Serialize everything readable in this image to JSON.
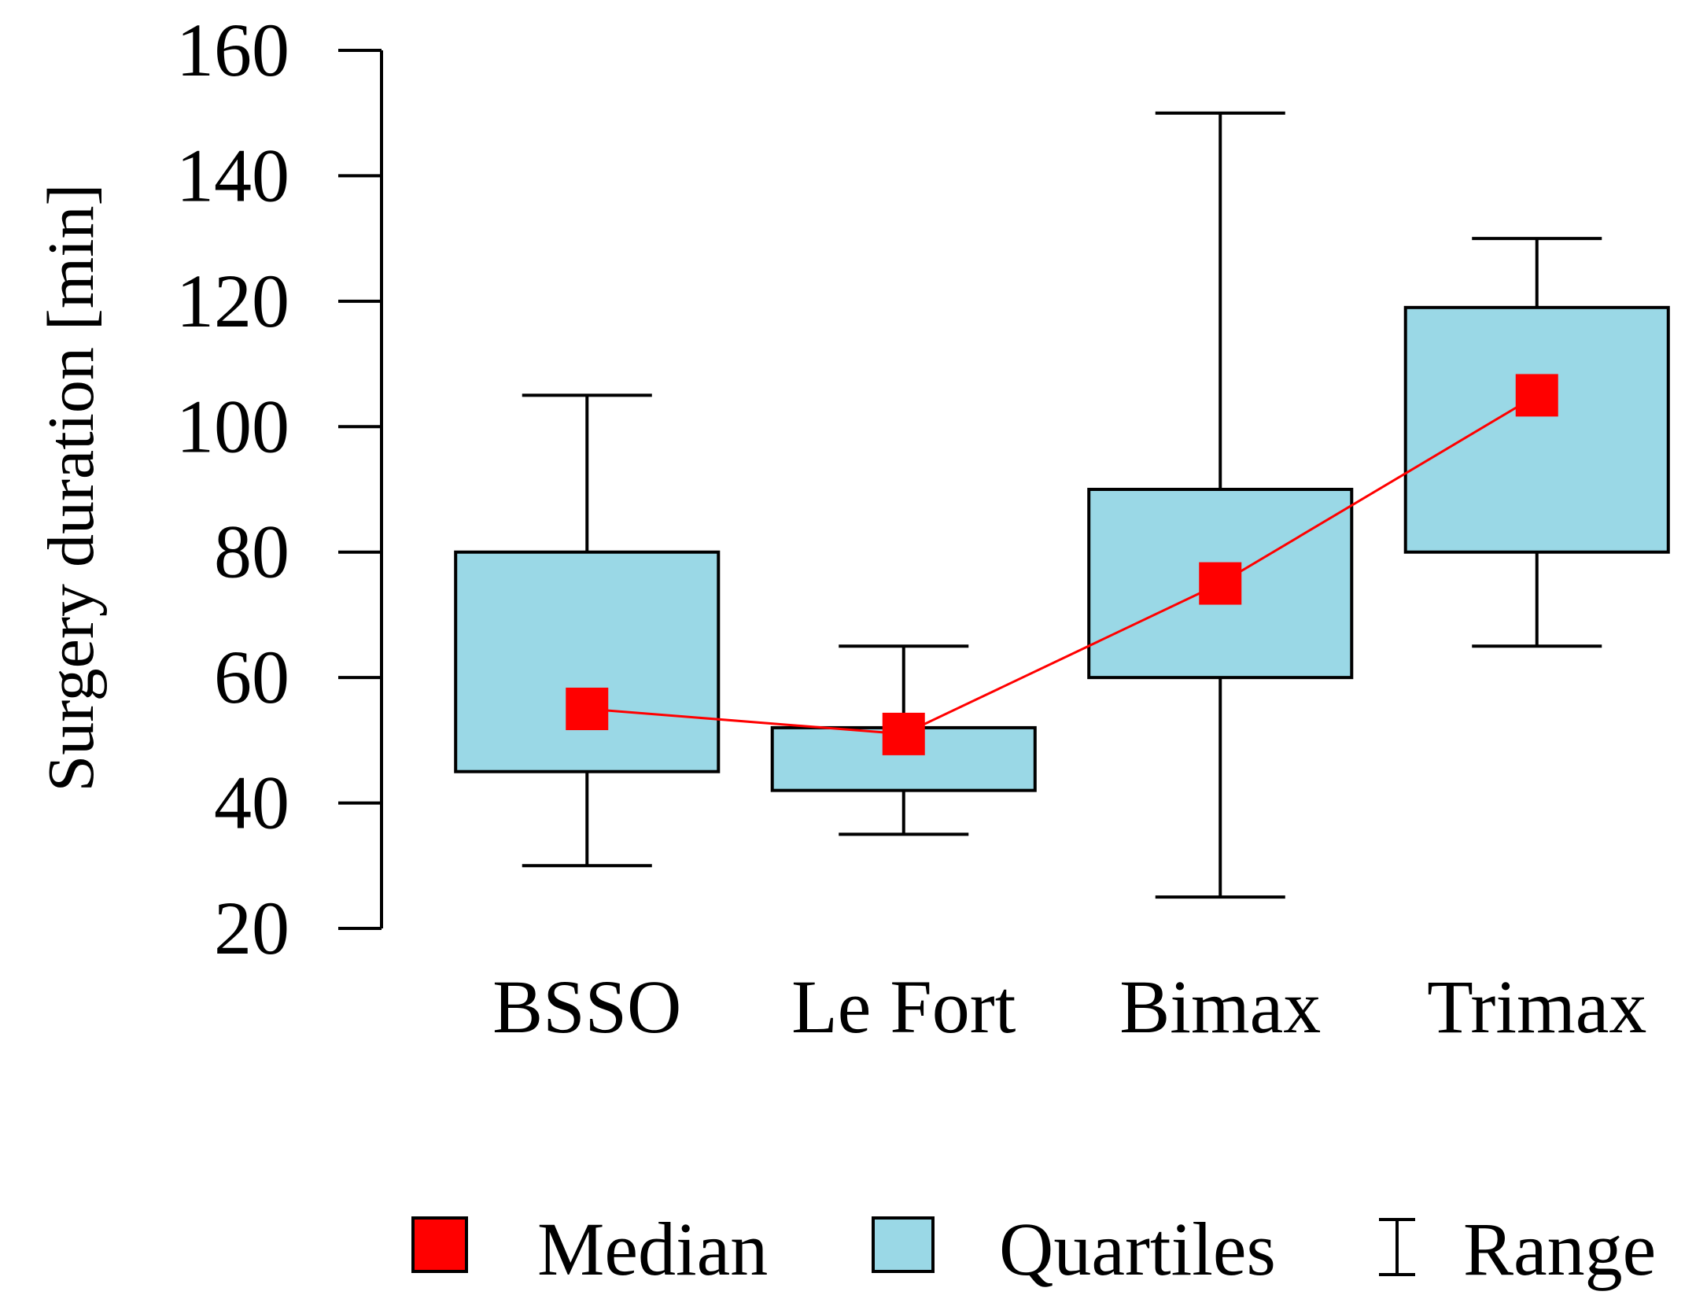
{
  "chart_data": {
    "type": "box",
    "title": "",
    "xlabel": "",
    "ylabel": "Surgery duration [min]",
    "ylim": [
      20,
      160
    ],
    "yticks": [
      20,
      40,
      60,
      80,
      100,
      120,
      140,
      160
    ],
    "grid": false,
    "categories": [
      "BSSO",
      "Le Fort",
      "Bimax",
      "Trimax"
    ],
    "series": [
      {
        "name": "Range (min)",
        "values": [
          30,
          35,
          25,
          65
        ]
      },
      {
        "name": "Quartile Q1",
        "values": [
          45,
          42,
          60,
          80
        ]
      },
      {
        "name": "Median",
        "values": [
          55,
          51,
          75,
          105
        ]
      },
      {
        "name": "Quartile Q3",
        "values": [
          80,
          52,
          90,
          119
        ]
      },
      {
        "name": "Range (max)",
        "values": [
          105,
          65,
          150,
          130
        ]
      }
    ],
    "legend": {
      "position": "bottom",
      "entries": [
        "Median",
        "Quartiles",
        "Range"
      ],
      "range_symbol": "I"
    },
    "colors": {
      "median": "#ff0000",
      "box_fill": "#9ad8e6",
      "stroke": "#000000"
    }
  }
}
